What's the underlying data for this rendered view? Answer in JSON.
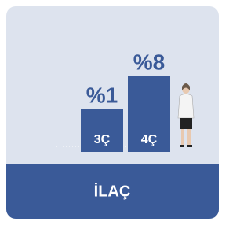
{
  "chart_data": {
    "type": "bar",
    "title": "İLAÇ",
    "categories": [
      "3Ç",
      "4Ç"
    ],
    "values": [
      1,
      8
    ],
    "value_labels": [
      "%1",
      "%8"
    ],
    "color": "#3a5a98"
  }
}
